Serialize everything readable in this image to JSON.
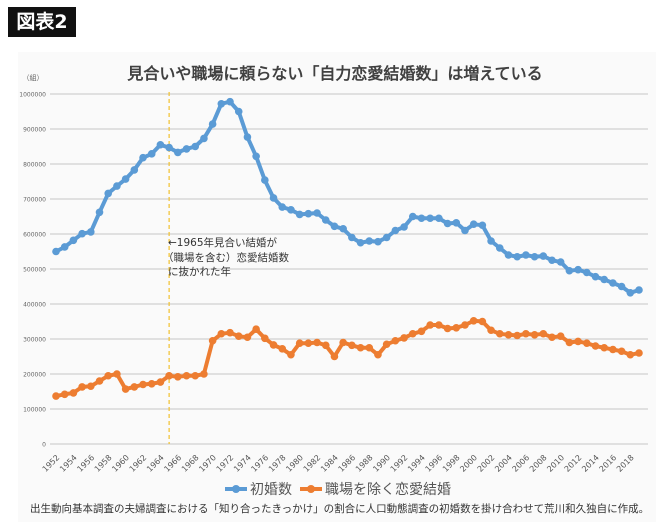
{
  "badge": "図表2",
  "chart_data": {
    "type": "line",
    "title": "見合いや職場に頼らない「自力恋愛結婚数」は増えている",
    "ylabel": "（組）",
    "xlabel": "",
    "ylim": [
      0,
      1000000
    ],
    "yticks": [
      0,
      100000,
      200000,
      300000,
      400000,
      500000,
      600000,
      700000,
      800000,
      900000,
      1000000
    ],
    "grid": true,
    "legend": "bottom",
    "x": [
      1952,
      1953,
      1954,
      1955,
      1956,
      1957,
      1958,
      1959,
      1960,
      1961,
      1962,
      1963,
      1964,
      1965,
      1966,
      1967,
      1968,
      1969,
      1970,
      1971,
      1972,
      1973,
      1974,
      1975,
      1976,
      1977,
      1978,
      1979,
      1980,
      1981,
      1982,
      1983,
      1984,
      1985,
      1986,
      1987,
      1988,
      1989,
      1990,
      1991,
      1992,
      1993,
      1994,
      1995,
      1996,
      1997,
      1998,
      1999,
      2000,
      2001,
      2002,
      2003,
      2004,
      2005,
      2006,
      2007,
      2008,
      2009,
      2010,
      2011,
      2012,
      2013,
      2014,
      2015,
      2016,
      2017,
      2018,
      2019
    ],
    "xtick_labels": [
      "1952",
      "1954",
      "1956",
      "1958",
      "1960",
      "1962",
      "1964",
      "1966",
      "1968",
      "1970",
      "1972",
      "1974",
      "1976",
      "1978",
      "1980",
      "1982",
      "1984",
      "1986",
      "1988",
      "1990",
      "1992",
      "1994",
      "1996",
      "1998",
      "2000",
      "2002",
      "2004",
      "2006",
      "2008",
      "2010",
      "2012",
      "2014",
      "2016",
      "2018"
    ],
    "series": [
      {
        "name": "初婚数",
        "color": "#5b9bd5",
        "values": [
          550000,
          563000,
          582000,
          601000,
          606000,
          662000,
          716000,
          737000,
          757000,
          783000,
          818000,
          829000,
          855000,
          847000,
          833000,
          843000,
          850000,
          873000,
          914000,
          972000,
          978000,
          950000,
          877000,
          822000,
          754000,
          703000,
          677000,
          669000,
          656000,
          658000,
          660000,
          640000,
          622000,
          615000,
          590000,
          575000,
          580000,
          578000,
          590000,
          610000,
          620000,
          650000,
          645000,
          645000,
          645000,
          630000,
          632000,
          610000,
          628000,
          625000,
          580000,
          560000,
          540000,
          535000,
          540000,
          535000,
          537000,
          525000,
          520000,
          495000,
          498000,
          490000,
          478000,
          470000,
          460000,
          450000,
          432000,
          440000
        ]
      },
      {
        "name": "職場を除く恋愛結婚",
        "color": "#ed7d31",
        "values": [
          137000,
          142000,
          146000,
          163000,
          165000,
          180000,
          195000,
          200000,
          157000,
          163000,
          170000,
          172000,
          177000,
          195000,
          192000,
          195000,
          195000,
          200000,
          295000,
          315000,
          318000,
          308000,
          305000,
          328000,
          302000,
          283000,
          272000,
          255000,
          288000,
          288000,
          290000,
          282000,
          250000,
          290000,
          282000,
          275000,
          275000,
          255000,
          285000,
          295000,
          303000,
          315000,
          322000,
          340000,
          340000,
          330000,
          332000,
          340000,
          352000,
          350000,
          325000,
          315000,
          312000,
          310000,
          315000,
          312000,
          315000,
          305000,
          308000,
          290000,
          293000,
          288000,
          280000,
          275000,
          270000,
          265000,
          255000,
          260000
        ]
      }
    ],
    "annotation": {
      "x": 1965,
      "line_color": "#f2c12e",
      "lines": [
        "←1965年見合い結婚が",
        "（職場を含む）恋愛結婚数",
        "に抜かれた年"
      ]
    }
  },
  "footer": "出生動向基本調査の夫婦調査における「知り合ったきっかけ」の割合に人口動態調査の初婚数を掛け合わせて荒川和久独自に作成。"
}
